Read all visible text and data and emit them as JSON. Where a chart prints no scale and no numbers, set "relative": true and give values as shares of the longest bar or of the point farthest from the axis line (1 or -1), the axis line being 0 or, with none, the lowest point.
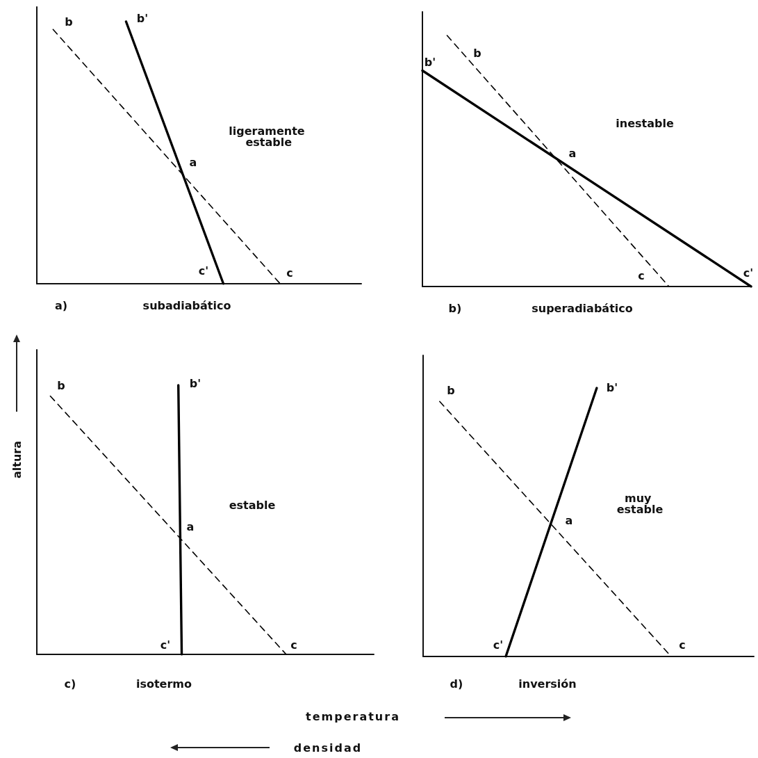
{
  "chart_data": [
    {
      "type": "line",
      "title": "a)",
      "xlabel": "subadiabático",
      "relative": true,
      "marker": "none",
      "categories": [
        null,
        null,
        null,
        null,
        null,
        null,
        null,
        null,
        null,
        null,
        null,
        null,
        null,
        null,
        null,
        null,
        null,
        null,
        null,
        null,
        null,
        null,
        null,
        null,
        null,
        null,
        null,
        null,
        null,
        null,
        null,
        null,
        null,
        null,
        null,
        null,
        null,
        null,
        null,
        null,
        null
      ],
      "series": [
        {
          "color": "#000000",
          "line_style": "dashed",
          "values": [
            null,
            null,
            0.97,
            null,
            null,
            null,
            null,
            null,
            null,
            null,
            null,
            null,
            null,
            null,
            null,
            null,
            null,
            null,
            null,
            null,
            null,
            null,
            null,
            null,
            null,
            null,
            null,
            null,
            null,
            null,
            0,
            null,
            null,
            null,
            null,
            null,
            null,
            null,
            null,
            null,
            null
          ]
        },
        {
          "color": "#000000",
          "line_style": "solid",
          "values": [
            null,
            null,
            null,
            null,
            null,
            null,
            null,
            null,
            null,
            null,
            null,
            1,
            null,
            null,
            null,
            null,
            null,
            null,
            null,
            null,
            null,
            null,
            null,
            0,
            null,
            null,
            null,
            null,
            null,
            null,
            null,
            null,
            null,
            null,
            null,
            null,
            null,
            null,
            null,
            null,
            null
          ]
        }
      ],
      "annotations": [
        "b",
        "b'",
        "c",
        "c'",
        "a",
        "ligeramente estable"
      ]
    },
    {
      "type": "line",
      "title": "b)",
      "xlabel": "superadiabático",
      "relative": true,
      "marker": "none",
      "categories": [
        null,
        null,
        null,
        null,
        null,
        null,
        null,
        null,
        null,
        null,
        null,
        null,
        null,
        null,
        null,
        null,
        null,
        null,
        null,
        null,
        null,
        null,
        null,
        null,
        null,
        null,
        null,
        null,
        null,
        null,
        null,
        null,
        null,
        null,
        null,
        null,
        null,
        null,
        null,
        null,
        null
      ],
      "series": [
        {
          "color": "#000000",
          "line_style": "dashed",
          "values": [
            null,
            null,
            null,
            1,
            null,
            null,
            null,
            null,
            null,
            null,
            null,
            null,
            null,
            null,
            null,
            null,
            null,
            null,
            null,
            null,
            null,
            null,
            null,
            null,
            null,
            null,
            null,
            null,
            null,
            null,
            0,
            null,
            null,
            null,
            null,
            null,
            null,
            null,
            null,
            null,
            null
          ]
        },
        {
          "color": "#000000",
          "line_style": "solid",
          "values": [
            0.86,
            null,
            null,
            null,
            null,
            null,
            null,
            null,
            null,
            null,
            null,
            null,
            null,
            null,
            null,
            null,
            null,
            null,
            null,
            null,
            null,
            null,
            null,
            null,
            null,
            null,
            null,
            null,
            null,
            null,
            null,
            null,
            null,
            null,
            null,
            null,
            null,
            null,
            null,
            null,
            0
          ]
        }
      ],
      "annotations": [
        "b",
        "b'",
        "c",
        "c'",
        "a",
        "inestable"
      ]
    },
    {
      "type": "line",
      "title": "c)",
      "xlabel": "isotermo",
      "ylabel": "altura",
      "relative": true,
      "marker": "none",
      "categories": [
        null,
        null,
        null,
        null,
        null,
        null,
        null,
        null,
        null,
        null,
        null,
        null,
        null,
        null,
        null,
        null,
        null,
        null,
        null,
        null,
        null,
        null,
        null,
        null,
        null,
        null,
        null,
        null,
        null,
        null,
        null,
        null,
        null,
        null,
        null,
        null,
        null,
        null,
        null,
        null,
        null,
        null,
        null,
        null,
        null,
        null,
        null,
        null,
        null,
        null,
        null,
        null,
        null,
        null,
        null,
        null,
        null,
        null,
        null,
        null,
        null,
        null,
        null,
        null,
        null,
        null,
        null,
        null,
        null,
        null,
        null,
        null,
        null,
        null,
        null,
        null,
        null,
        null,
        null,
        null,
        null,
        null,
        null,
        null,
        null,
        null,
        null,
        null,
        null,
        null,
        null,
        null,
        null,
        null,
        null,
        null,
        null,
        null,
        null,
        null,
        null
      ],
      "series": [
        {
          "color": "#000000",
          "line_style": "dashed",
          "values": [
            null,
            null,
            null,
            null,
            0.96,
            null,
            null,
            null,
            null,
            null,
            null,
            null,
            null,
            null,
            null,
            null,
            null,
            null,
            null,
            null,
            null,
            null,
            null,
            null,
            null,
            null,
            null,
            null,
            null,
            null,
            null,
            null,
            null,
            null,
            null,
            null,
            null,
            null,
            null,
            null,
            null,
            null,
            null,
            null,
            null,
            null,
            null,
            null,
            null,
            null,
            null,
            null,
            null,
            null,
            null,
            null,
            null,
            null,
            null,
            null,
            null,
            null,
            null,
            null,
            null,
            null,
            null,
            null,
            null,
            null,
            null,
            null,
            null,
            null,
            0,
            null,
            null,
            null,
            null,
            null,
            null,
            null,
            null,
            null,
            null,
            null,
            null,
            null,
            null,
            null,
            null,
            null,
            null,
            null,
            null,
            null,
            null,
            null,
            null,
            null,
            null
          ]
        },
        {
          "color": "#000000",
          "line_style": "solid",
          "values": [
            null,
            null,
            null,
            null,
            null,
            null,
            null,
            null,
            null,
            null,
            null,
            null,
            null,
            null,
            null,
            null,
            null,
            null,
            null,
            null,
            null,
            null,
            null,
            null,
            null,
            null,
            null,
            null,
            null,
            null,
            null,
            null,
            null,
            null,
            null,
            null,
            null,
            null,
            null,
            null,
            null,
            null,
            1,
            0,
            null,
            null,
            null,
            null,
            null,
            null,
            null,
            null,
            null,
            null,
            null,
            null,
            null,
            null,
            null,
            null,
            null,
            null,
            null,
            null,
            null,
            null,
            null,
            null,
            null,
            null,
            null,
            null,
            null,
            null,
            null,
            null,
            null,
            null,
            null,
            null,
            null,
            null,
            null,
            null,
            null,
            null,
            null,
            null,
            null,
            null,
            null,
            null,
            null,
            null,
            null,
            null,
            null,
            null,
            null,
            null,
            null
          ]
        }
      ],
      "annotations": [
        "b",
        "b'",
        "c",
        "c'",
        "a",
        "estable"
      ]
    },
    {
      "type": "line",
      "title": "d)",
      "xlabel": "inversión",
      "relative": true,
      "marker": "none",
      "categories": [
        null,
        null,
        null,
        null,
        null,
        null,
        null,
        null,
        null,
        null,
        null,
        null,
        null,
        null,
        null,
        null,
        null,
        null,
        null,
        null,
        null,
        null,
        null,
        null,
        null,
        null,
        null,
        null,
        null,
        null,
        null,
        null,
        null,
        null,
        null,
        null,
        null,
        null,
        null,
        null,
        null
      ],
      "series": [
        {
          "color": "#000000",
          "line_style": "dashed",
          "values": [
            null,
            null,
            0.95,
            null,
            null,
            null,
            null,
            null,
            null,
            null,
            null,
            null,
            null,
            null,
            null,
            null,
            null,
            null,
            null,
            null,
            null,
            null,
            null,
            null,
            null,
            null,
            null,
            null,
            null,
            null,
            0,
            null,
            null,
            null,
            null,
            null,
            null,
            null,
            null,
            null,
            null
          ]
        },
        {
          "color": "#000000",
          "line_style": "solid",
          "values": [
            null,
            null,
            null,
            null,
            null,
            null,
            null,
            null,
            null,
            null,
            0,
            null,
            null,
            null,
            null,
            null,
            null,
            null,
            null,
            null,
            null,
            1,
            null,
            null,
            null,
            null,
            null,
            null,
            null,
            null,
            null,
            null,
            null,
            null,
            null,
            null,
            null,
            null,
            null,
            null,
            null
          ]
        }
      ],
      "annotations": [
        "b",
        "b'",
        "c",
        "c'",
        "a",
        "muy estable"
      ]
    },
    {
      "type": "other",
      "annotations": [
        "temperatura",
        "densidad"
      ]
    }
  ]
}
